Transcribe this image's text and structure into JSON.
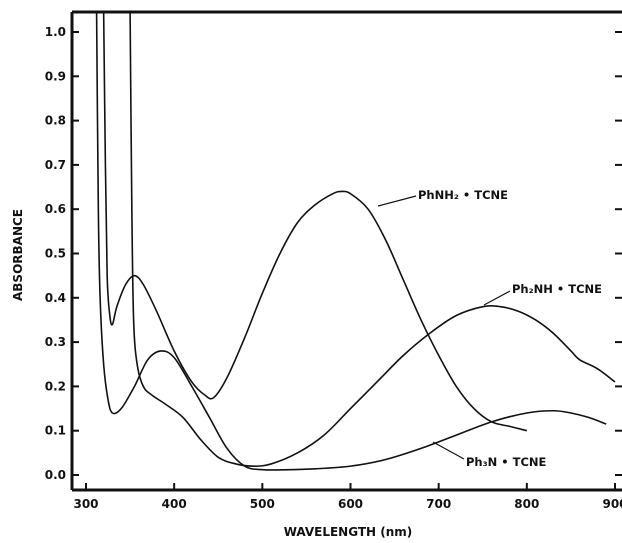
{
  "chart_data": {
    "type": "line",
    "xlabel": "WAVELENGTH (nm)",
    "ylabel": "ABSORBANCE",
    "xlim": [
      300,
      900
    ],
    "ylim": [
      0.0,
      1.0
    ],
    "x_ticks": [
      "300",
      "400",
      "500",
      "600",
      "700",
      "800",
      "900"
    ],
    "y_ticks": [
      "0.0",
      "0.1",
      "0.2",
      "0.3",
      "0.4",
      "0.5",
      "0.6",
      "0.7",
      "0.8",
      "0.9",
      "1.0"
    ],
    "grid": false,
    "line_color": "#111111",
    "series": [
      {
        "name": "PhNH₂ • TCNE",
        "points": [
          [
            320,
            1.05
          ],
          [
            322,
            0.7
          ],
          [
            324,
            0.45
          ],
          [
            327,
            0.36
          ],
          [
            330,
            0.34
          ],
          [
            335,
            0.38
          ],
          [
            345,
            0.43
          ],
          [
            355,
            0.45
          ],
          [
            365,
            0.43
          ],
          [
            380,
            0.37
          ],
          [
            400,
            0.28
          ],
          [
            420,
            0.21
          ],
          [
            435,
            0.18
          ],
          [
            445,
            0.175
          ],
          [
            460,
            0.22
          ],
          [
            480,
            0.31
          ],
          [
            500,
            0.41
          ],
          [
            520,
            0.5
          ],
          [
            540,
            0.57
          ],
          [
            560,
            0.61
          ],
          [
            580,
            0.635
          ],
          [
            590,
            0.64
          ],
          [
            600,
            0.635
          ],
          [
            620,
            0.6
          ],
          [
            640,
            0.53
          ],
          [
            660,
            0.44
          ],
          [
            680,
            0.35
          ],
          [
            700,
            0.27
          ],
          [
            720,
            0.2
          ],
          [
            740,
            0.15
          ],
          [
            760,
            0.12
          ],
          [
            780,
            0.11
          ],
          [
            800,
            0.1
          ]
        ]
      },
      {
        "name": "Ph₂NH • TCNE",
        "points": [
          [
            350,
            1.05
          ],
          [
            352,
            0.6
          ],
          [
            354,
            0.35
          ],
          [
            358,
            0.25
          ],
          [
            365,
            0.2
          ],
          [
            375,
            0.18
          ],
          [
            390,
            0.16
          ],
          [
            410,
            0.13
          ],
          [
            430,
            0.08
          ],
          [
            450,
            0.04
          ],
          [
            470,
            0.025
          ],
          [
            490,
            0.02
          ],
          [
            510,
            0.025
          ],
          [
            540,
            0.05
          ],
          [
            570,
            0.09
          ],
          [
            600,
            0.15
          ],
          [
            630,
            0.21
          ],
          [
            660,
            0.27
          ],
          [
            690,
            0.32
          ],
          [
            720,
            0.36
          ],
          [
            750,
            0.38
          ],
          [
            770,
            0.38
          ],
          [
            790,
            0.37
          ],
          [
            810,
            0.35
          ],
          [
            830,
            0.32
          ],
          [
            850,
            0.28
          ],
          [
            860,
            0.26
          ],
          [
            880,
            0.24
          ],
          [
            900,
            0.21
          ]
        ]
      },
      {
        "name": "Ph₃N • TCNE",
        "points": [
          [
            312,
            1.05
          ],
          [
            314,
            0.6
          ],
          [
            316,
            0.4
          ],
          [
            320,
            0.25
          ],
          [
            325,
            0.17
          ],
          [
            330,
            0.14
          ],
          [
            340,
            0.15
          ],
          [
            355,
            0.2
          ],
          [
            370,
            0.26
          ],
          [
            385,
            0.28
          ],
          [
            400,
            0.265
          ],
          [
            420,
            0.2
          ],
          [
            440,
            0.13
          ],
          [
            460,
            0.06
          ],
          [
            480,
            0.02
          ],
          [
            500,
            0.012
          ],
          [
            530,
            0.012
          ],
          [
            560,
            0.014
          ],
          [
            600,
            0.02
          ],
          [
            640,
            0.035
          ],
          [
            680,
            0.06
          ],
          [
            720,
            0.09
          ],
          [
            760,
            0.12
          ],
          [
            800,
            0.14
          ],
          [
            830,
            0.145
          ],
          [
            850,
            0.14
          ],
          [
            870,
            0.13
          ],
          [
            890,
            0.115
          ]
        ]
      }
    ]
  }
}
